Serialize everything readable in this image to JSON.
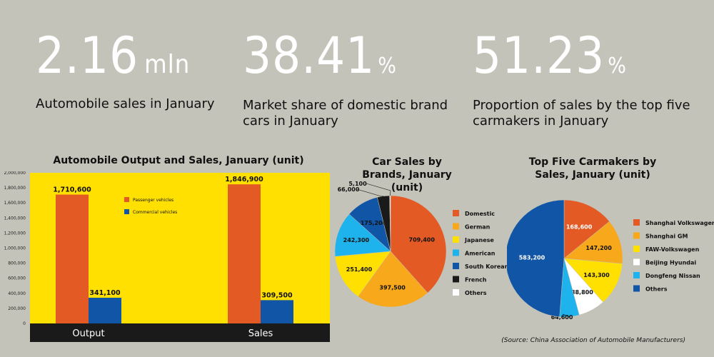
{
  "stats": [
    {
      "value": "2.16",
      "unit": "mln",
      "desc": "Automobile sales in January"
    },
    {
      "value": "38.41",
      "unit": "%",
      "desc": "Market share of domestic brand cars in January"
    },
    {
      "value": "51.23",
      "unit": "%",
      "desc": "Proportion of sales by the top five carmakers in January"
    }
  ],
  "source": "(Source: China Association of Automobile Manufacturers)",
  "chart_data": [
    {
      "type": "bar",
      "title": "Automobile Output and Sales, January (unit)",
      "categories": [
        "Output",
        "Sales"
      ],
      "series": [
        {
          "name": "Passenger vehicles",
          "values": [
            1710600,
            1846900
          ],
          "labels": [
            "1,710,600",
            "1,846,900"
          ],
          "color": "#e35a25"
        },
        {
          "name": "Commercial vehicles",
          "values": [
            341100,
            309500
          ],
          "labels": [
            "341,100",
            "309,500"
          ],
          "color": "#1156a6"
        }
      ],
      "ylim": [
        0,
        2000000
      ],
      "yticks": [
        "0",
        "200,000",
        "400,000",
        "600,000",
        "800,000",
        "1,000,000",
        "1,200,000",
        "1,400,000",
        "1,600,000",
        "1,800,000",
        "2,000,000"
      ],
      "plot_bg": "#ffe000",
      "legend_position": "top-center"
    },
    {
      "type": "pie",
      "title": "Car Sales by Brands, January (unit)",
      "slices": [
        {
          "name": "Domestic",
          "value": 709400,
          "label": "709,400",
          "color": "#e35a25"
        },
        {
          "name": "German",
          "value": 397500,
          "label": "397,500",
          "color": "#f7a81b"
        },
        {
          "name": "Japanese",
          "value": 251400,
          "label": "251,400",
          "color": "#ffe000"
        },
        {
          "name": "American",
          "value": 242300,
          "label": "242,300",
          "color": "#1eb3ec"
        },
        {
          "name": "South Korean",
          "value": 175200,
          "label": "175,200",
          "color": "#1156a6"
        },
        {
          "name": "French",
          "value": 66000,
          "label": "66,000",
          "color": "#1a1a1a"
        },
        {
          "name": "Others",
          "value": 5100,
          "label": "5,100",
          "color": "#ffffff"
        }
      ]
    },
    {
      "type": "pie",
      "title": "Top Five Carmakers by Sales, January (unit)",
      "slices": [
        {
          "name": "Shanghai Volkswagen",
          "value": 168600,
          "label": "168,600",
          "color": "#e35a25"
        },
        {
          "name": "Shanghai GM",
          "value": 147200,
          "label": "147,200",
          "color": "#f7a81b"
        },
        {
          "name": "FAW-Volkswagen",
          "value": 143300,
          "label": "143,300",
          "color": "#ffe000"
        },
        {
          "name": "Beijing Hyundai",
          "value": 88800,
          "label": "88,800",
          "color": "#ffffff"
        },
        {
          "name": "Dongfeng Nissan",
          "value": 64600,
          "label": "64,600",
          "color": "#1eb3ec"
        },
        {
          "name": "Others",
          "value": 583200,
          "label": "583,200",
          "color": "#1156a6"
        }
      ]
    }
  ]
}
